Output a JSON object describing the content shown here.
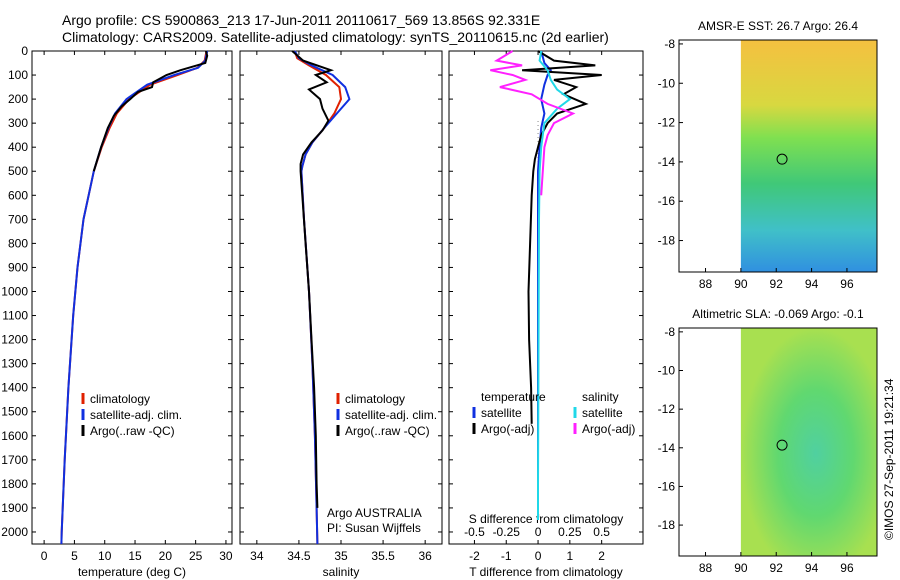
{
  "header": {
    "line1": "Argo profile: CS 5900863_213 17-Jun-2011 20110617_569 13.856S 92.331E",
    "line2": "Climatology: CARS2009. Satellite-adjusted climatology: synTS_20110615.nc (2d earlier)"
  },
  "stamp": "©IMOS 27-Sep-2011 19:21:34",
  "colors": {
    "clim": "#e02000",
    "sat": "#1030e0",
    "argo": "#000000",
    "sal_sat": "#20d8e8",
    "sal_argo": "#ff20ff"
  },
  "depth_ticks": [
    "0",
    "100",
    "200",
    "300",
    "400",
    "500",
    "600",
    "700",
    "800",
    "900",
    "1000",
    "1100",
    "1200",
    "1300",
    "1400",
    "1500",
    "1600",
    "1700",
    "1800",
    "1900",
    "2000"
  ],
  "chart_data": [
    {
      "type": "line",
      "xlabel": "temperature (deg C)",
      "xlim": [
        -2,
        31
      ],
      "ylim": [
        2050,
        0
      ],
      "xticks": [
        "0",
        "5",
        "10",
        "15",
        "20",
        "25",
        "30"
      ],
      "xtick_values": [
        0,
        5,
        10,
        15,
        20,
        25,
        30
      ],
      "legend": [
        "climatology",
        "satellite-adj. clim.",
        "Argo(..raw -QC)"
      ],
      "series": [
        {
          "name": "climatology",
          "color": "clim",
          "depth": [
            0,
            40,
            70,
            100,
            140,
            200,
            260,
            320,
            400,
            500,
            700,
            900,
            1100,
            1400,
            1700,
            2000,
            2050
          ],
          "values": [
            26.8,
            26.5,
            25.3,
            22,
            17.5,
            14,
            12,
            10.8,
            9.5,
            8.2,
            6.5,
            5.5,
            4.8,
            4,
            3.4,
            2.9,
            2.85
          ]
        },
        {
          "name": "satellite-adj. clim.",
          "color": "sat",
          "depth": [
            0,
            40,
            70,
            100,
            140,
            200,
            260,
            320,
            400,
            500,
            700,
            900,
            1100,
            1400,
            1700,
            2000,
            2050
          ],
          "values": [
            26.9,
            26.6,
            25.4,
            21.5,
            17,
            13.6,
            11.7,
            10.6,
            9.4,
            8.2,
            6.5,
            5.5,
            4.8,
            4,
            3.4,
            2.9,
            2.85
          ]
        },
        {
          "name": "Argo(..raw -QC)",
          "color": "argo",
          "depth": [
            0,
            20,
            50,
            60,
            80,
            100,
            130,
            150,
            170,
            200,
            230,
            270,
            320,
            400,
            500
          ],
          "values": [
            26.7,
            26.9,
            26.6,
            25.2,
            22.5,
            20.2,
            18,
            17.8,
            15.5,
            14.2,
            12.8,
            11.5,
            10.5,
            9.4,
            8.2
          ]
        }
      ]
    },
    {
      "type": "line",
      "xlabel": "salinity",
      "xlim": [
        33.8,
        36.2
      ],
      "ylim": [
        2050,
        0
      ],
      "xticks": [
        "34",
        "34.5",
        "35",
        "35.5",
        "36"
      ],
      "xtick_values": [
        34,
        34.5,
        35,
        35.5,
        36
      ],
      "legend": [
        "climatology",
        "satellite-adj. clim.",
        "Argo(..raw -QC)"
      ],
      "annotation": [
        "Argo AUSTRALIA",
        "PI: Susan Wijffels"
      ],
      "series": [
        {
          "name": "climatology",
          "color": "clim",
          "depth": [
            0,
            30,
            60,
            100,
            150,
            200,
            260,
            320,
            380,
            430,
            480,
            500,
            700,
            1000,
            1300,
            1600,
            1900,
            2050
          ],
          "values": [
            34.45,
            34.48,
            34.62,
            34.82,
            34.98,
            35.0,
            34.92,
            34.8,
            34.66,
            34.58,
            34.54,
            34.53,
            34.56,
            34.62,
            34.66,
            34.69,
            34.71,
            34.72
          ]
        },
        {
          "name": "satellite-adj. clim.",
          "color": "sat",
          "depth": [
            0,
            30,
            60,
            100,
            150,
            200,
            260,
            320,
            380,
            430,
            480,
            500,
            700,
            1000,
            1300,
            1600,
            1900,
            2050
          ],
          "values": [
            34.45,
            34.5,
            34.65,
            34.9,
            35.05,
            35.1,
            34.95,
            34.8,
            34.66,
            34.58,
            34.54,
            34.53,
            34.56,
            34.62,
            34.66,
            34.69,
            34.71,
            34.72
          ]
        },
        {
          "name": "Argo(..raw -QC)",
          "color": "argo",
          "depth": [
            0,
            40,
            80,
            100,
            130,
            160,
            200,
            240,
            290,
            330,
            380,
            430,
            470,
            500,
            600,
            800,
            1000,
            1200,
            1400,
            1600,
            1800,
            1900
          ],
          "values": [
            34.42,
            34.55,
            34.88,
            34.7,
            34.83,
            34.62,
            34.75,
            34.78,
            34.85,
            34.78,
            34.65,
            34.55,
            34.52,
            34.52,
            34.54,
            34.58,
            34.62,
            34.65,
            34.68,
            34.7,
            34.71,
            34.72
          ]
        }
      ]
    },
    {
      "type": "line",
      "xlim": [
        -2.8,
        3.3
      ],
      "ylim": [
        2050,
        0
      ],
      "xlabel": "T difference from climatology",
      "xticks": [
        "-2",
        "-1",
        "0",
        "1",
        "2"
      ],
      "xtick_values": [
        -2,
        -1,
        0,
        1,
        2
      ],
      "xlabel_top": "S difference from climatology",
      "xticks_top": [
        "-0.5",
        "-0.25",
        "0",
        "0.25",
        "0.5"
      ],
      "legend_temperature": [
        "temperature",
        "satellite",
        "Argo(-adj)"
      ],
      "legend_salinity": [
        "salinity",
        "satellite",
        "Argo(-adj)"
      ],
      "series": [
        {
          "name": "temperature satellite",
          "color": "sat",
          "depth": [
            0,
            50,
            80,
            100,
            140,
            200,
            260,
            320,
            400,
            500,
            700,
            1000,
            1500,
            1900
          ],
          "values": [
            0.1,
            0.2,
            0.4,
            0.3,
            0.2,
            0.1,
            0.2,
            0.1,
            0.05,
            0,
            0,
            0,
            0,
            0
          ]
        },
        {
          "name": "temperature Argo(-adj)",
          "color": "argo",
          "depth": [
            0,
            40,
            60,
            80,
            100,
            120,
            150,
            180,
            220,
            260,
            300,
            350,
            400,
            450,
            500,
            600,
            800,
            1000,
            1200,
            1400,
            1550
          ],
          "values": [
            0,
            0.5,
            1.8,
            -0.5,
            2,
            0.5,
            1.2,
            0.8,
            1.5,
            0.6,
            0.3,
            0.1,
            0.0,
            -0.1,
            -0.15,
            -0.2,
            -0.25,
            -0.3,
            -0.28,
            -0.22,
            -0.2
          ]
        },
        {
          "name": "salinity satellite",
          "color": "sal_sat",
          "depth": [
            0,
            40,
            80,
            120,
            160,
            200,
            240,
            300,
            400,
            500,
            700,
            1000,
            1400,
            1800,
            1950
          ],
          "values": [
            0.1,
            0.05,
            0.3,
            0.4,
            0.6,
            1.0,
            0.6,
            0.2,
            0.1,
            0.05,
            0.03,
            0.02,
            0.01,
            0.0,
            0.0
          ]
        },
        {
          "name": "salinity Argo(-adj)",
          "color": "sal_argo",
          "depth": [
            0,
            40,
            60,
            80,
            100,
            120,
            150,
            180,
            220,
            260,
            300,
            350,
            400,
            500,
            600
          ],
          "values": [
            -0.8,
            -1.3,
            -0.5,
            -1.5,
            -0.8,
            -0.4,
            -1.2,
            -0.2,
            0.3,
            1.1,
            0.5,
            0.3,
            0.2,
            0.15,
            0.1
          ]
        }
      ]
    }
  ],
  "maps": [
    {
      "title": "AMSR-E SST: 26.7 Argo: 26.4",
      "xticks": [
        "88",
        "90",
        "92",
        "94",
        "96"
      ],
      "yticks": [
        "-8",
        "-10",
        "-12",
        "-14",
        "-16",
        "-18"
      ]
    },
    {
      "title": "Altimetric SLA: -0.069 Argo: -0.1",
      "xticks": [
        "88",
        "90",
        "92",
        "94",
        "96"
      ],
      "yticks": [
        "-8",
        "-10",
        "-12",
        "-14",
        "-16",
        "-18"
      ]
    }
  ]
}
